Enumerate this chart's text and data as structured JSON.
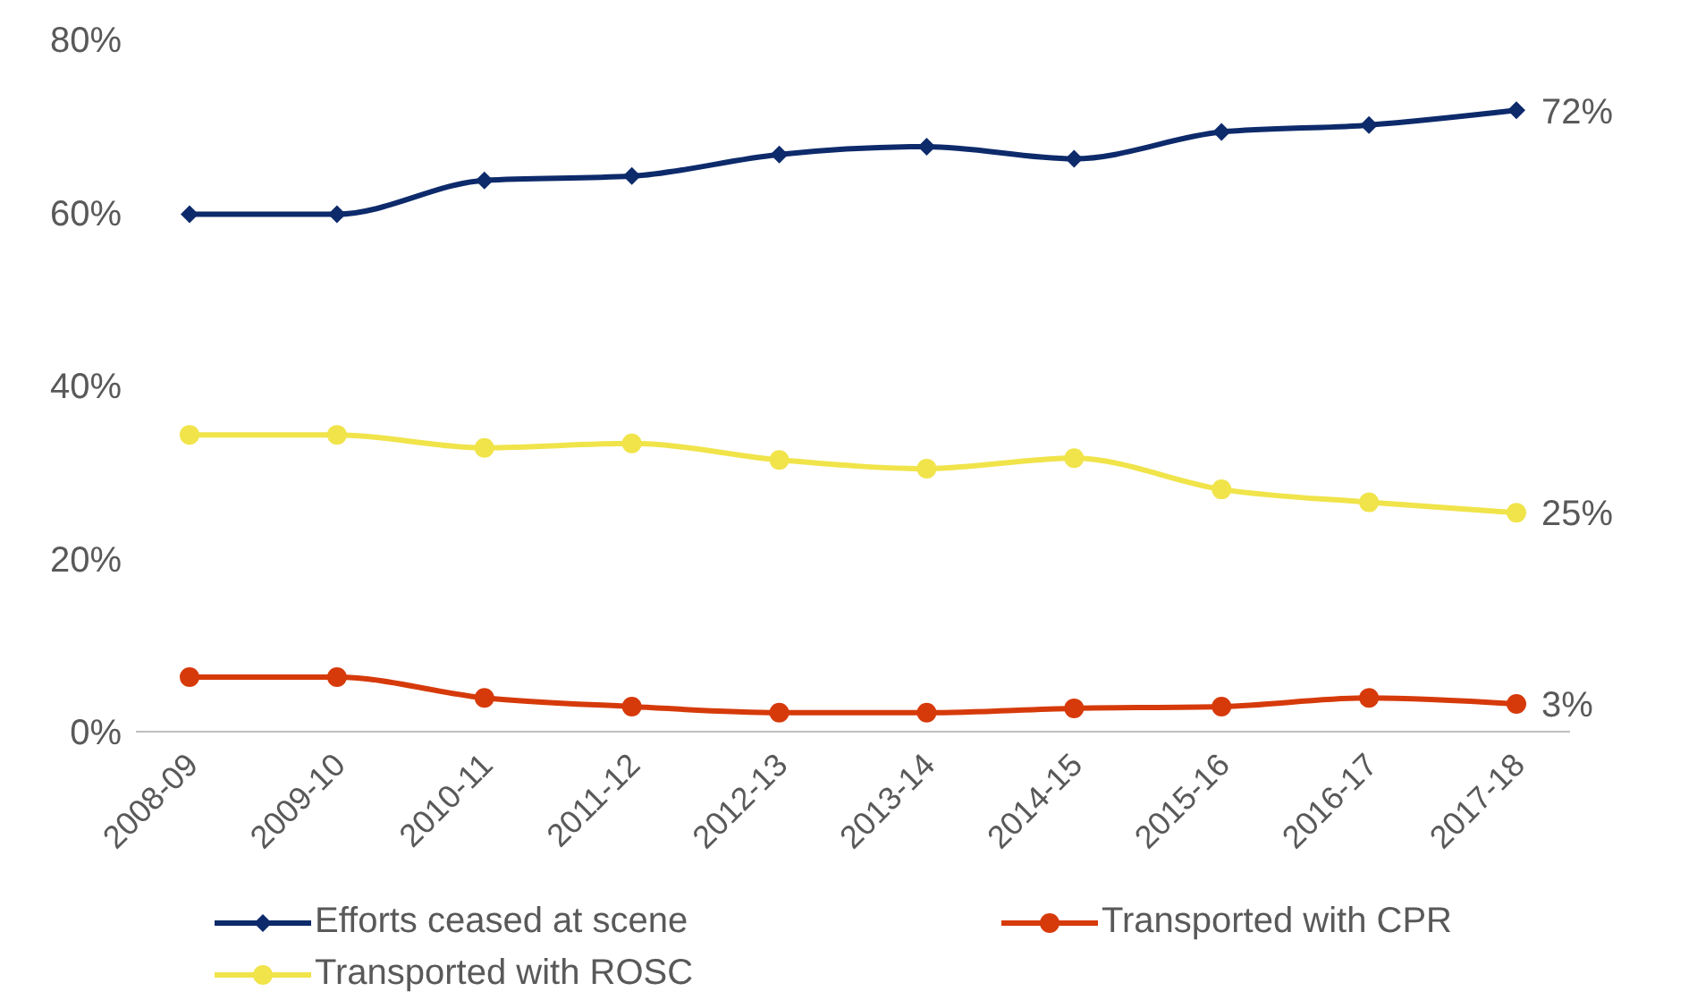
{
  "chart_data": {
    "type": "line",
    "categories": [
      "2008-09",
      "2009-10",
      "2010-11",
      "2011-12",
      "2012-13",
      "2013-14",
      "2014-15",
      "2015-16",
      "2016-17",
      "2017-18"
    ],
    "series": [
      {
        "name": "Efforts ceased at scene",
        "color": "#0d2a6b",
        "marker": "diamond",
        "values": [
          59.8,
          59.8,
          63.7,
          64.2,
          66.7,
          67.6,
          66.2,
          69.3,
          70.1,
          71.8
        ]
      },
      {
        "name": "Transported with CPR",
        "color": "#d63a0a",
        "marker": "circle",
        "values": [
          6.3,
          6.3,
          3.9,
          2.9,
          2.2,
          2.2,
          2.7,
          2.9,
          3.9,
          3.2
        ]
      },
      {
        "name": "Transported with ROSC",
        "color": "#f0e44a",
        "marker": "circle",
        "values": [
          34.3,
          34.3,
          32.8,
          33.3,
          31.4,
          30.4,
          31.6,
          28.0,
          26.5,
          25.3
        ]
      }
    ],
    "ylim": [
      0,
      80
    ],
    "yticks": [
      {
        "value": 0,
        "label": "0%"
      },
      {
        "value": 20,
        "label": "20%"
      },
      {
        "value": 40,
        "label": "40%"
      },
      {
        "value": 60,
        "label": "60%"
      },
      {
        "value": 80,
        "label": "80%"
      }
    ],
    "grid": false,
    "legend": "bottom",
    "annotations": [
      {
        "text": "72%",
        "x": "2017-18",
        "y": 71.8
      },
      {
        "text": "25%",
        "x": "2017-18",
        "y": 25.3
      },
      {
        "text": "3%",
        "x": "2017-18",
        "y": 3.2
      }
    ]
  }
}
